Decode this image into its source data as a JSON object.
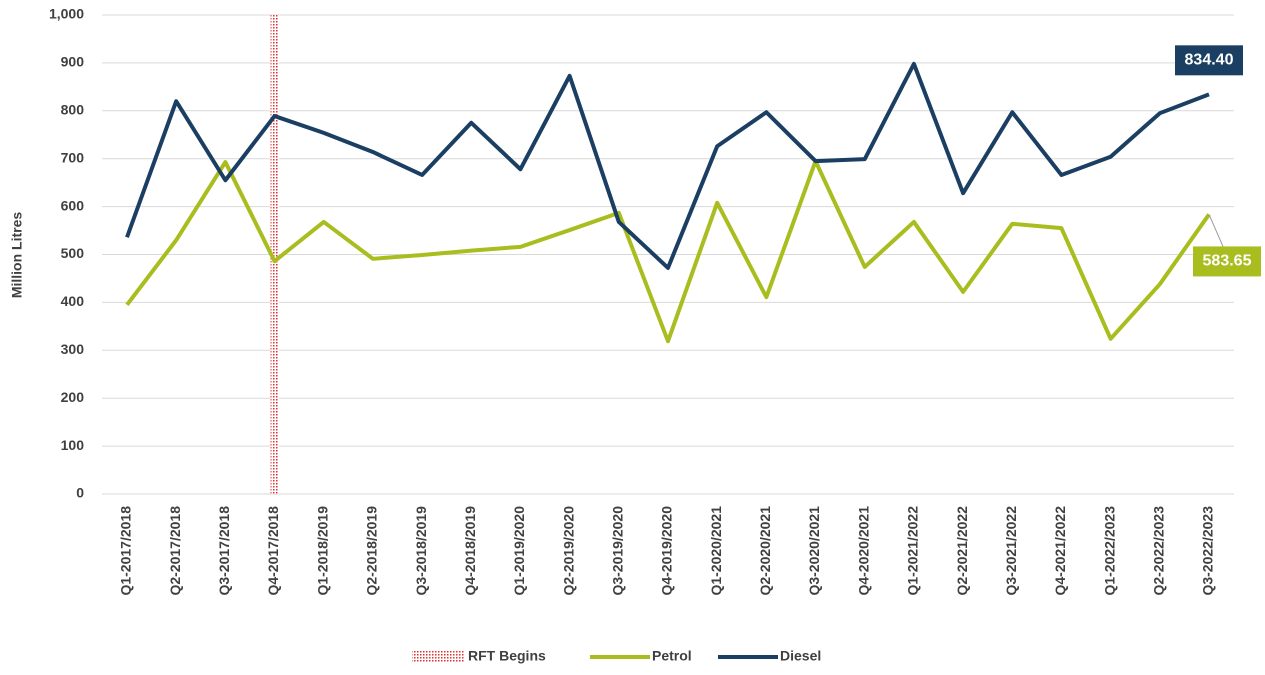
{
  "chart_data": {
    "type": "line",
    "y_label": "Million Litres",
    "categories": [
      "Q1-2017/2018",
      "Q2-2017/2018",
      "Q3-2017/2018",
      "Q4-2017/2018",
      "Q1-2018/2019",
      "Q2-2018/2019",
      "Q3-2018/2019",
      "Q4-2018/2019",
      "Q1-2019/2020",
      "Q2-2019/2020",
      "Q3-2019/2020",
      "Q4-2019/2020",
      "Q1-2020/2021",
      "Q2-2020/2021",
      "Q3-2020/2021",
      "Q4-2020/2021",
      "Q1-2021/2022",
      "Q2-2021/2022",
      "Q3-2021/2022",
      "Q4-2021/2022",
      "Q1-2022/2023",
      "Q2-2022/2023",
      "Q3-2022/2023"
    ],
    "series": [
      {
        "name": "Petrol",
        "color": "#a9bd1f",
        "values": [
          395,
          530,
          693,
          486,
          568,
          491,
          499,
          508,
          516,
          551,
          587,
          319,
          608,
          411,
          695,
          474,
          568,
          422,
          564,
          555,
          324,
          438,
          583.65
        ],
        "value_labels": [
          null,
          null,
          null,
          null,
          null,
          null,
          null,
          null,
          null,
          null,
          null,
          null,
          null,
          null,
          null,
          null,
          null,
          null,
          null,
          null,
          null,
          null,
          "583.65"
        ]
      },
      {
        "name": "Diesel",
        "color": "#1b3f63",
        "values": [
          536,
          820,
          655,
          789,
          754,
          714,
          666,
          775,
          678,
          873,
          568,
          472,
          726,
          797,
          695,
          699,
          898,
          628,
          797,
          666,
          704,
          795,
          834.4
        ],
        "value_labels": [
          null,
          null,
          null,
          null,
          null,
          null,
          null,
          null,
          null,
          null,
          null,
          null,
          null,
          null,
          null,
          null,
          null,
          null,
          null,
          null,
          null,
          null,
          "834.40"
        ]
      }
    ],
    "marker": {
      "name": "RFT Begins",
      "x": "Q4-2017/2018",
      "color": "#e03030"
    },
    "ylim": [
      0,
      1000
    ],
    "yticks": [
      0,
      100,
      200,
      300,
      400,
      500,
      600,
      700,
      800,
      900,
      {
        "value": 1000,
        "label": "1,000"
      }
    ],
    "grid": true,
    "legend": "bottom"
  }
}
